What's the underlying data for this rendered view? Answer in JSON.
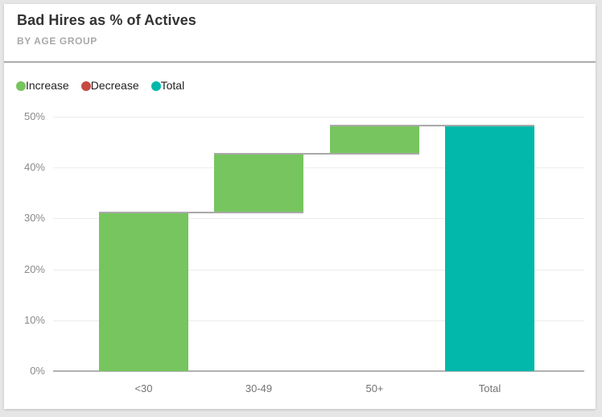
{
  "card": {
    "title": "Bad Hires as % of Actives",
    "subtitle": "BY AGE GROUP"
  },
  "legend": {
    "items": [
      {
        "name": "increase",
        "label": "Increase",
        "color": "#76C55E"
      },
      {
        "name": "decrease",
        "label": "Decrease",
        "color": "#C44A44"
      },
      {
        "name": "total",
        "label": "Total",
        "color": "#01B8AA"
      }
    ]
  },
  "chart_data": {
    "type": "bar",
    "subtype": "waterfall",
    "title": "Bad Hires as % of Actives",
    "subtitle": "BY AGE GROUP",
    "categories": [
      "<30",
      "30-49",
      "50+",
      "Total"
    ],
    "bar_types": [
      "increase",
      "increase",
      "increase",
      "total"
    ],
    "series": [
      {
        "name": "Bad Hires as % of Actives",
        "increments": [
          31.0,
          11.5,
          5.6
        ],
        "cumulative": [
          31.0,
          42.5,
          48.1
        ],
        "total": 48.1
      }
    ],
    "colors": {
      "increase": "#76C55E",
      "decrease": "#C44A44",
      "total": "#01B8AA",
      "connector": "#A9A9A9"
    },
    "xlabel": "",
    "ylabel": "",
    "ylim": [
      0,
      50
    ],
    "y_ticks": [
      {
        "label": "50%",
        "value": 50
      },
      {
        "label": "40%",
        "value": 40
      },
      {
        "label": "30%",
        "value": 30
      },
      {
        "label": "20%",
        "value": 20
      },
      {
        "label": "10%",
        "value": 10
      },
      {
        "label": "0%",
        "value": 0
      }
    ],
    "grid": true,
    "legend_position": "top-left"
  }
}
